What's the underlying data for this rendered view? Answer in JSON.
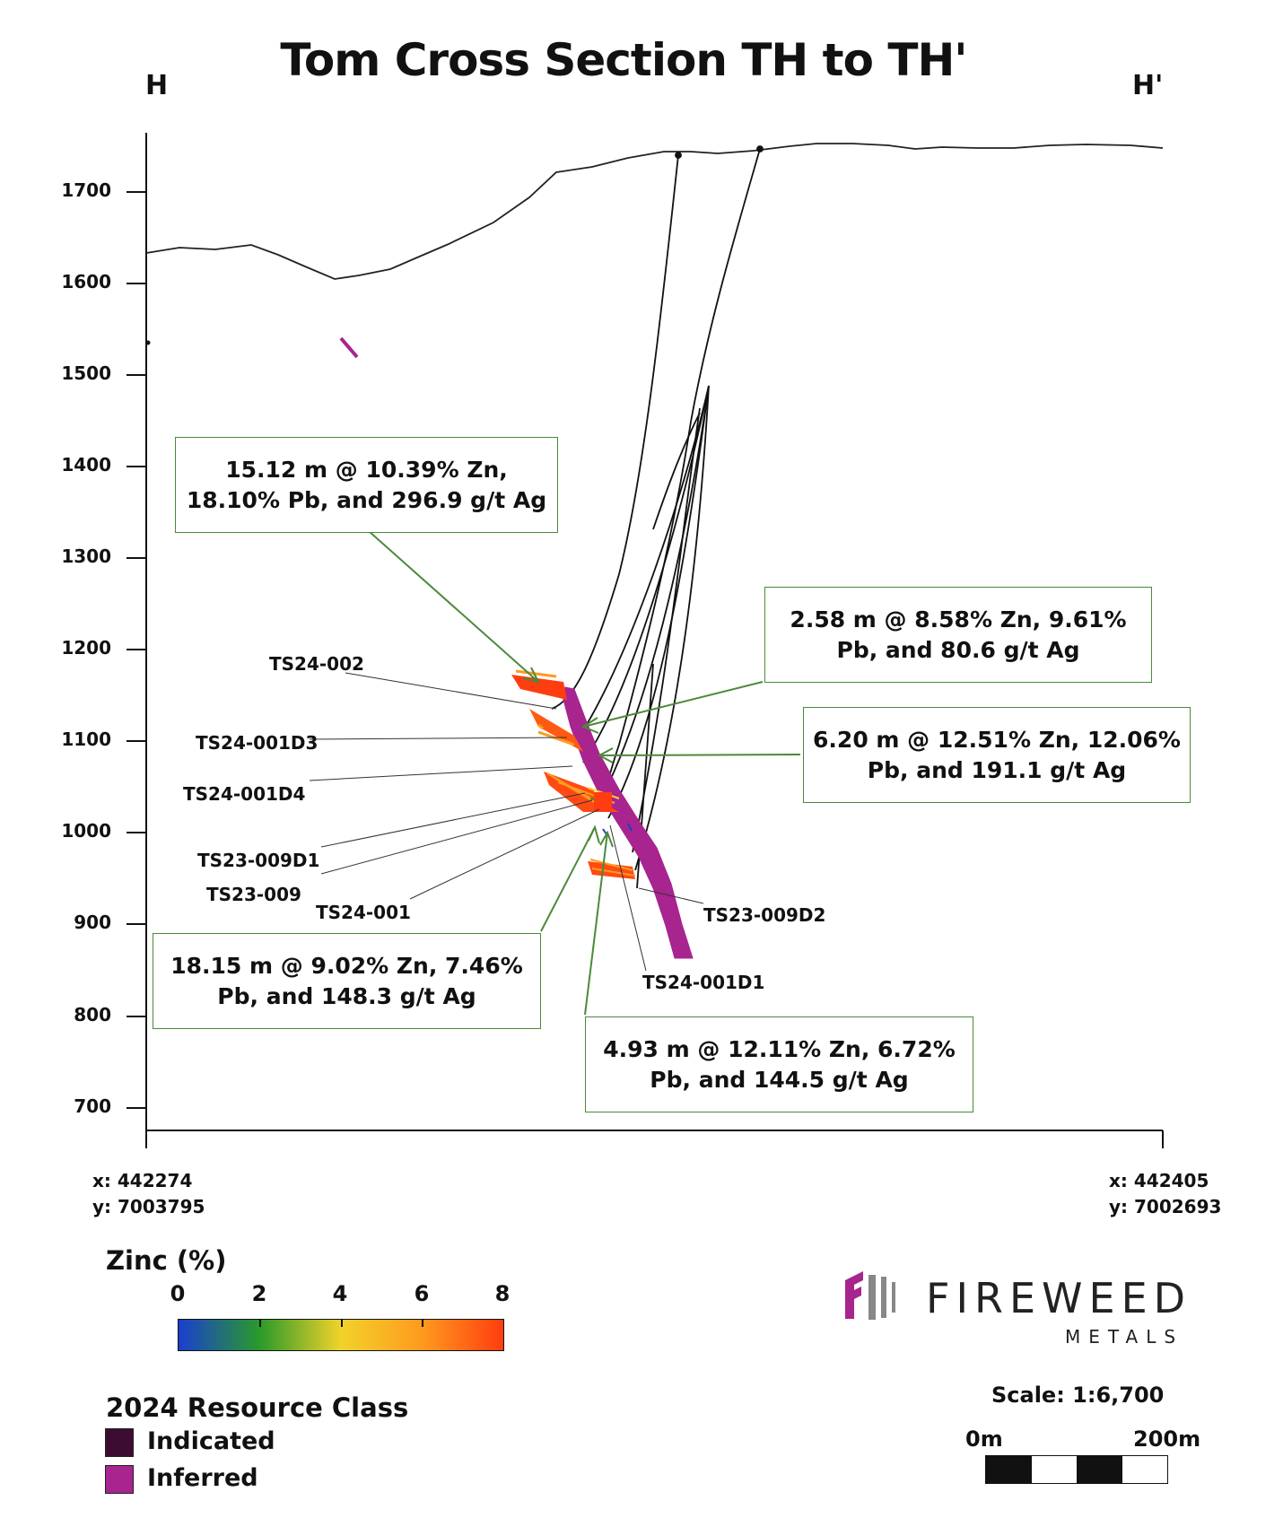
{
  "title": "Tom Cross Section TH to TH'",
  "section_ends": {
    "left": "H",
    "right": "H'"
  },
  "y_axis": {
    "ticks": [
      "1700",
      "1600",
      "1500",
      "1400",
      "1300",
      "1200",
      "1100",
      "1000",
      "900",
      "800",
      "700"
    ]
  },
  "coordinates": {
    "left": "x: 442274\ny: 7003795",
    "right": "x: 442405\ny: 7002693"
  },
  "drill_holes": [
    "TS24-002",
    "TS24-001D3",
    "TS24-001D4",
    "TS23-009D1",
    "TS23-009",
    "TS24-001",
    "TS23-009D2",
    "TS24-001D1"
  ],
  "callouts": {
    "c1": "15.12 m @ 10.39% Zn, 18.10% Pb, and 296.9 g/t Ag",
    "c2": "2.58 m @ 8.58% Zn, 9.61% Pb, and 80.6 g/t Ag",
    "c3": "6.20 m @ 12.51% Zn, 12.06% Pb, and 191.1 g/t Ag",
    "c4": "18.15 m @ 9.02% Zn, 7.46% Pb, and 148.3 g/t Ag",
    "c5": "4.93 m @ 12.11% Zn, 6.72% Pb, and 144.5 g/t Ag"
  },
  "zinc_legend": {
    "title": "Zinc (%)",
    "ticks": [
      "0",
      "2",
      "4",
      "6",
      "8"
    ],
    "colors": [
      "#1a3fcf",
      "#2a9a2a",
      "#f2d22a",
      "#ff9a1e",
      "#ff3d10"
    ]
  },
  "resource_legend": {
    "title": "2024 Resource Class",
    "items": [
      {
        "label": "Indicated",
        "color": "#3d0c33"
      },
      {
        "label": "Inferred",
        "color": "#a8248f"
      }
    ]
  },
  "logo": {
    "name": "FIREWEED",
    "sub": "METALS",
    "color": "#a8248f"
  },
  "scale": {
    "text": "Scale: 1:6,700",
    "start": "0m",
    "end": "200m"
  }
}
